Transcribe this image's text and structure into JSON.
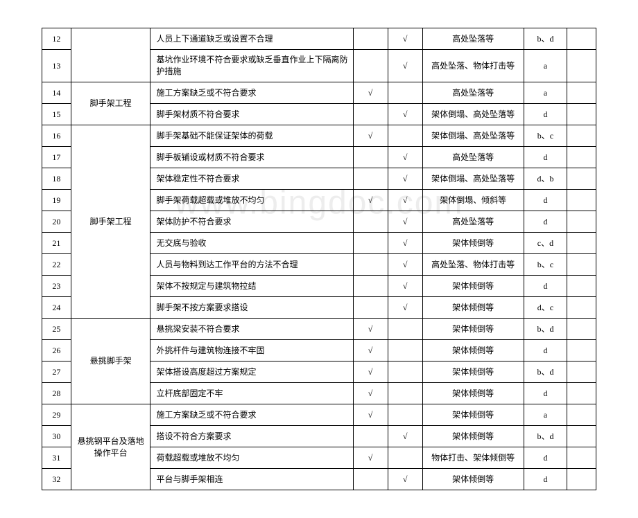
{
  "watermark": "www.bingdoc.com",
  "colWidths": {
    "num": 40,
    "cat": 110,
    "desc": 280,
    "chk1": 48,
    "chk2": 48,
    "risk": 140,
    "code": 60,
    "last": 40
  },
  "styling": {
    "fontFamily": "SimSun",
    "fontSize": 12,
    "borderColor": "#000000",
    "background": "#ffffff",
    "textColor": "#000000",
    "checkMark": "√"
  },
  "categories": {
    "cat1": "",
    "cat2": "脚手架工程",
    "cat3": "脚手架工程",
    "cat4": "悬挑脚手架",
    "cat5": "悬挑钢平台及落地操作平台"
  },
  "rows": [
    {
      "num": "12",
      "desc": "人员上下通道缺乏或设置不合理",
      "c1": "",
      "c2": "√",
      "risk": "高处坠落等",
      "code": "b、d"
    },
    {
      "num": "13",
      "desc": "基坑作业环境不符合要求或缺乏垂直作业上下隔离防护措施",
      "c1": "",
      "c2": "√",
      "risk": "高处坠落、物体打击等",
      "code": "a",
      "tall": true
    },
    {
      "num": "14",
      "desc": "施工方案缺乏或不符合要求",
      "c1": "√",
      "c2": "",
      "risk": "高处坠落等",
      "code": "a"
    },
    {
      "num": "15",
      "desc": "脚手架材质不符合要求",
      "c1": "",
      "c2": "√",
      "risk": "架体倒塌、高处坠落等",
      "code": "d"
    },
    {
      "num": "16",
      "desc": "脚手架基础不能保证架体的荷载",
      "c1": "√",
      "c2": "",
      "risk": "架体倒塌、高处坠落等",
      "code": "b、c"
    },
    {
      "num": "17",
      "desc": "脚手板铺设或材质不符合要求",
      "c1": "",
      "c2": "√",
      "risk": "高处坠落等",
      "code": "d"
    },
    {
      "num": "18",
      "desc": "架体稳定性不符合要求",
      "c1": "",
      "c2": "√",
      "risk": "架体倒塌、高处坠落等",
      "code": "d、b"
    },
    {
      "num": "19",
      "desc": "脚手架荷载超载或堆放不均匀",
      "c1": "√",
      "c2": "√",
      "risk": "架体倒塌、倾斜等",
      "code": "d"
    },
    {
      "num": "20",
      "desc": "架体防护不符合要求",
      "c1": "",
      "c2": "√",
      "risk": "高处坠落等",
      "code": "d"
    },
    {
      "num": "21",
      "desc": "无交底与验收",
      "c1": "",
      "c2": "√",
      "risk": "架体倾倒等",
      "code": "c、d"
    },
    {
      "num": "22",
      "desc": "人员与物料到达工作平台的方法不合理",
      "c1": "",
      "c2": "√",
      "risk": "高处坠落、物体打击等",
      "code": "b、c"
    },
    {
      "num": "23",
      "desc": "架体不按规定与建筑物拉结",
      "c1": "",
      "c2": "√",
      "risk": "架体倾倒等",
      "code": "d"
    },
    {
      "num": "24",
      "desc": "脚手架不按方案要求搭设",
      "c1": "",
      "c2": "√",
      "risk": "架体倾倒等",
      "code": "d、c"
    },
    {
      "num": "25",
      "desc": "悬挑梁安装不符合要求",
      "c1": "√",
      "c2": "",
      "risk": "架体倾倒等",
      "code": "b、d"
    },
    {
      "num": "26",
      "desc": "外挑杆件与建筑物连接不牢固",
      "c1": "√",
      "c2": "",
      "risk": "架体倾倒等",
      "code": "d"
    },
    {
      "num": "27",
      "desc": "架体搭设高度超过方案规定",
      "c1": "√",
      "c2": "",
      "risk": "架体倾倒等",
      "code": "b、d"
    },
    {
      "num": "28",
      "desc": "立杆底部固定不牢",
      "c1": "√",
      "c2": "",
      "risk": "架体倾倒等",
      "code": "d"
    },
    {
      "num": "29",
      "desc": "施工方案缺乏或不符合要求",
      "c1": "√",
      "c2": "",
      "risk": "架体倾倒等",
      "code": "a"
    },
    {
      "num": "30",
      "desc": "搭设不符合方案要求",
      "c1": "",
      "c2": "√",
      "risk": "架体倾倒等",
      "code": "b、d"
    },
    {
      "num": "31",
      "desc": "荷载超载或堆放不均匀",
      "c1": "√",
      "c2": "",
      "risk": "物体打击、架体倾倒等",
      "code": "d"
    },
    {
      "num": "32",
      "desc": "平台与脚手架相连",
      "c1": "",
      "c2": "√",
      "risk": "架体倾倒等",
      "code": "d"
    }
  ]
}
